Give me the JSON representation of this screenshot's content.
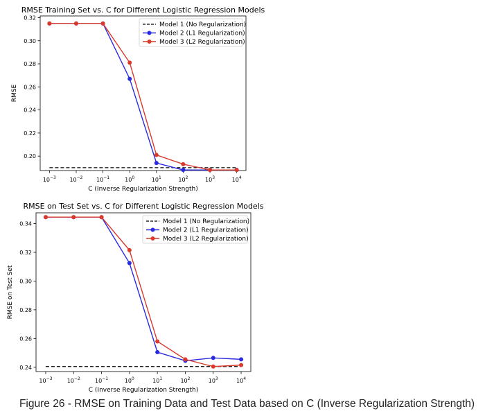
{
  "caption": "Figure 26 - RMSE on Training Data and Test Data based on C (Inverse Regularization Strength)",
  "chart_data": [
    {
      "type": "line",
      "title": "RMSE Training Set vs. C for Different Logistic Regression Models",
      "xlabel": "C (Inverse Regularization Strength)",
      "ylabel": "RMSE",
      "x_scale": "log",
      "x": [
        0.001,
        0.01,
        0.1,
        1,
        10,
        100,
        1000,
        10000
      ],
      "x_tick_labels": [
        {
          "base": "10",
          "exp": "−3"
        },
        {
          "base": "10",
          "exp": "−2"
        },
        {
          "base": "10",
          "exp": "−1"
        },
        {
          "base": "10",
          "exp": "0"
        },
        {
          "base": "10",
          "exp": "1"
        },
        {
          "base": "10",
          "exp": "2"
        },
        {
          "base": "10",
          "exp": "3"
        },
        {
          "base": "10",
          "exp": "4"
        }
      ],
      "y_ticks": [
        0.2,
        0.22,
        0.24,
        0.26,
        0.28,
        0.3,
        0.32
      ],
      "y_tick_labels": [
        "0.20",
        "0.22",
        "0.24",
        "0.26",
        "0.28",
        "0.30",
        "0.32"
      ],
      "ylim": [
        0.1875,
        0.3215
      ],
      "grid": false,
      "legend_position": "top-right",
      "series": [
        {
          "name": "Model 1 (No Regularization)",
          "style": "dashed",
          "color": "#000000",
          "values": [
            0.19,
            0.19,
            0.19,
            0.19,
            0.19,
            0.19,
            0.19,
            0.19
          ]
        },
        {
          "name": "Model 2 (L1 Regularization)",
          "style": "line-marker",
          "color": "#2a2ae0",
          "values": [
            0.315,
            0.315,
            0.315,
            0.267,
            0.194,
            0.188,
            0.188,
            0.188
          ]
        },
        {
          "name": "Model 3 (L2 Regularization)",
          "style": "line-marker",
          "color": "#d93a2b",
          "values": [
            0.315,
            0.315,
            0.315,
            0.281,
            0.201,
            0.193,
            0.188,
            0.188
          ]
        }
      ]
    },
    {
      "type": "line",
      "title": "RMSE on Test Set vs. C for Different Logistic Regression Models",
      "xlabel": "C (Inverse Regularization Strength)",
      "ylabel": "RMSE on Test Set",
      "x_scale": "log",
      "x": [
        0.001,
        0.01,
        0.1,
        1,
        10,
        100,
        1000,
        10000
      ],
      "x_tick_labels": [
        {
          "base": "10",
          "exp": "−3"
        },
        {
          "base": "10",
          "exp": "−2"
        },
        {
          "base": "10",
          "exp": "−1"
        },
        {
          "base": "10",
          "exp": "0"
        },
        {
          "base": "10",
          "exp": "1"
        },
        {
          "base": "10",
          "exp": "2"
        },
        {
          "base": "10",
          "exp": "3"
        },
        {
          "base": "10",
          "exp": "4"
        }
      ],
      "y_ticks": [
        0.24,
        0.26,
        0.28,
        0.3,
        0.32,
        0.34
      ],
      "y_tick_labels": [
        "0.24",
        "0.26",
        "0.28",
        "0.30",
        "0.32",
        "0.34"
      ],
      "ylim": [
        0.237,
        0.3475
      ],
      "grid": false,
      "legend_position": "top-right",
      "series": [
        {
          "name": "Model 1 (No Regularization)",
          "style": "dashed",
          "color": "#000000",
          "values": [
            0.2405,
            0.2405,
            0.2405,
            0.2405,
            0.2405,
            0.2405,
            0.2405,
            0.2405
          ]
        },
        {
          "name": "Model 2 (L1 Regularization)",
          "style": "line-marker",
          "color": "#2a2ae0",
          "values": [
            0.3445,
            0.3445,
            0.3445,
            0.3125,
            0.2505,
            0.2445,
            0.2465,
            0.2455
          ]
        },
        {
          "name": "Model 3 (L2 Regularization)",
          "style": "line-marker",
          "color": "#d93a2b",
          "values": [
            0.3445,
            0.3445,
            0.3445,
            0.3215,
            0.258,
            0.2455,
            0.2405,
            0.2415
          ]
        }
      ]
    }
  ]
}
